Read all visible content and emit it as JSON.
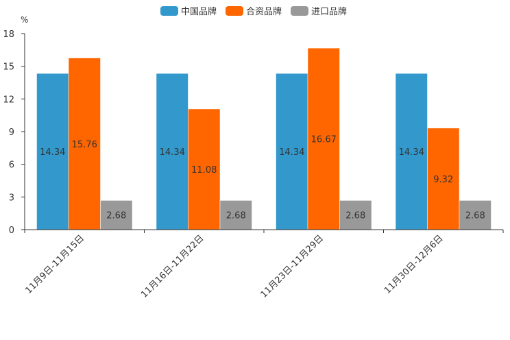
{
  "chart_data": {
    "type": "bar",
    "title": "",
    "xlabel": "",
    "ylabel": "%",
    "ylim": [
      0,
      18
    ],
    "yticks": [
      0,
      3,
      6,
      9,
      12,
      15,
      18
    ],
    "categories": [
      "11月9日-11月15日",
      "11月16日-11月22日",
      "11月23日-11月29日",
      "11月30日-12月6日"
    ],
    "series": [
      {
        "name": "中国品牌",
        "color": "#3399cc",
        "values": [
          14.34,
          14.34,
          14.34,
          14.34
        ],
        "labels": [
          "14.34",
          "14.34",
          "14.34",
          "14.34"
        ]
      },
      {
        "name": "合资品牌",
        "color": "#ff6600",
        "values": [
          15.76,
          11.08,
          16.67,
          9.32
        ],
        "labels": [
          "15.76",
          "11.08",
          "16.67",
          "9.32"
        ]
      },
      {
        "name": "进口品牌",
        "color": "#999999",
        "values": [
          2.68,
          2.68,
          2.68,
          2.68
        ],
        "labels": [
          "2.68",
          "2.68",
          "2.68",
          "2.68"
        ]
      }
    ],
    "legend_position": "top-center",
    "grid": false
  }
}
